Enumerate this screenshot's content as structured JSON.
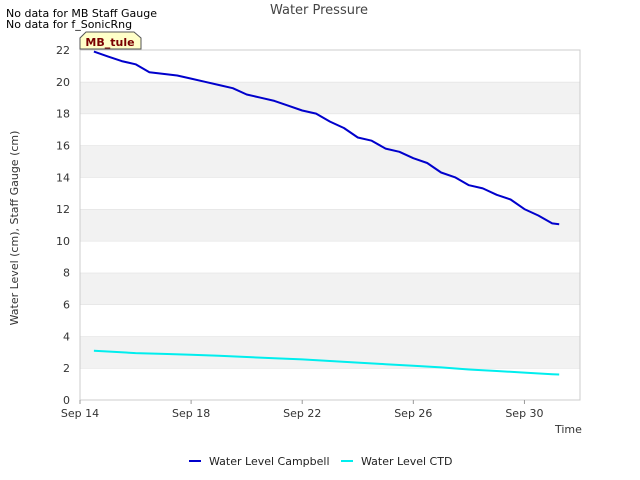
{
  "notes": [
    "No data for MB Staff Gauge",
    "No data for f_SonicRng"
  ],
  "site_badge": "MB_tule",
  "chart_data": {
    "type": "line",
    "title": "Water Pressure",
    "xlabel": "Time",
    "ylabel": "Water Level (cm), Staff Gauge (cm)",
    "ylim": [
      0,
      22
    ],
    "yticks": [
      0,
      2,
      4,
      6,
      8,
      10,
      12,
      14,
      16,
      18,
      20,
      22
    ],
    "xlim": [
      "Sep 14",
      "Oct 2"
    ],
    "xticks": [
      "Sep 14",
      "Sep 18",
      "Sep 22",
      "Sep 26",
      "Sep 30"
    ],
    "grid": "horizontal alternating bands",
    "legend": "bottom",
    "series": [
      {
        "name": "Water Level Campbell",
        "color": "#0000cc",
        "x": [
          "Sep 14 12:00",
          "Sep 15",
          "Sep 15 12:00",
          "Sep 16",
          "Sep 16 12:00",
          "Sep 17",
          "Sep 17 12:00",
          "Sep 18",
          "Sep 18 12:00",
          "Sep 19",
          "Sep 19 12:00",
          "Sep 20",
          "Sep 20 12:00",
          "Sep 21",
          "Sep 21 12:00",
          "Sep 22",
          "Sep 22 12:00",
          "Sep 23",
          "Sep 23 12:00",
          "Sep 24",
          "Sep 24 12:00",
          "Sep 25",
          "Sep 25 12:00",
          "Sep 26",
          "Sep 26 12:00",
          "Sep 27",
          "Sep 27 12:00",
          "Sep 28",
          "Sep 28 12:00",
          "Sep 29",
          "Sep 29 12:00",
          "Sep 30",
          "Sep 30 12:00",
          "Oct 1",
          "Oct 1 06:00"
        ],
        "values": [
          21.9,
          21.6,
          21.3,
          21.1,
          20.6,
          20.5,
          20.4,
          20.2,
          20.0,
          19.8,
          19.6,
          19.2,
          19.0,
          18.8,
          18.5,
          18.2,
          18.0,
          17.5,
          17.1,
          16.5,
          16.3,
          15.8,
          15.6,
          15.2,
          14.9,
          14.3,
          14.0,
          13.5,
          13.3,
          12.9,
          12.6,
          12.0,
          11.6,
          11.1,
          11.05
        ]
      },
      {
        "name": "Water Level CTD",
        "color": "#00eeee",
        "x": [
          "Sep 14 12:00",
          "Sep 15",
          "Sep 16",
          "Sep 17",
          "Sep 18",
          "Sep 19",
          "Sep 20",
          "Sep 21",
          "Sep 22",
          "Sep 23",
          "Sep 24",
          "Sep 25",
          "Sep 26",
          "Sep 27",
          "Sep 28",
          "Sep 29",
          "Sep 30",
          "Oct 1",
          "Oct 1 06:00"
        ],
        "values": [
          3.1,
          3.05,
          2.95,
          2.9,
          2.85,
          2.78,
          2.7,
          2.62,
          2.55,
          2.45,
          2.35,
          2.25,
          2.15,
          2.05,
          1.92,
          1.82,
          1.72,
          1.62,
          1.6
        ]
      }
    ]
  }
}
